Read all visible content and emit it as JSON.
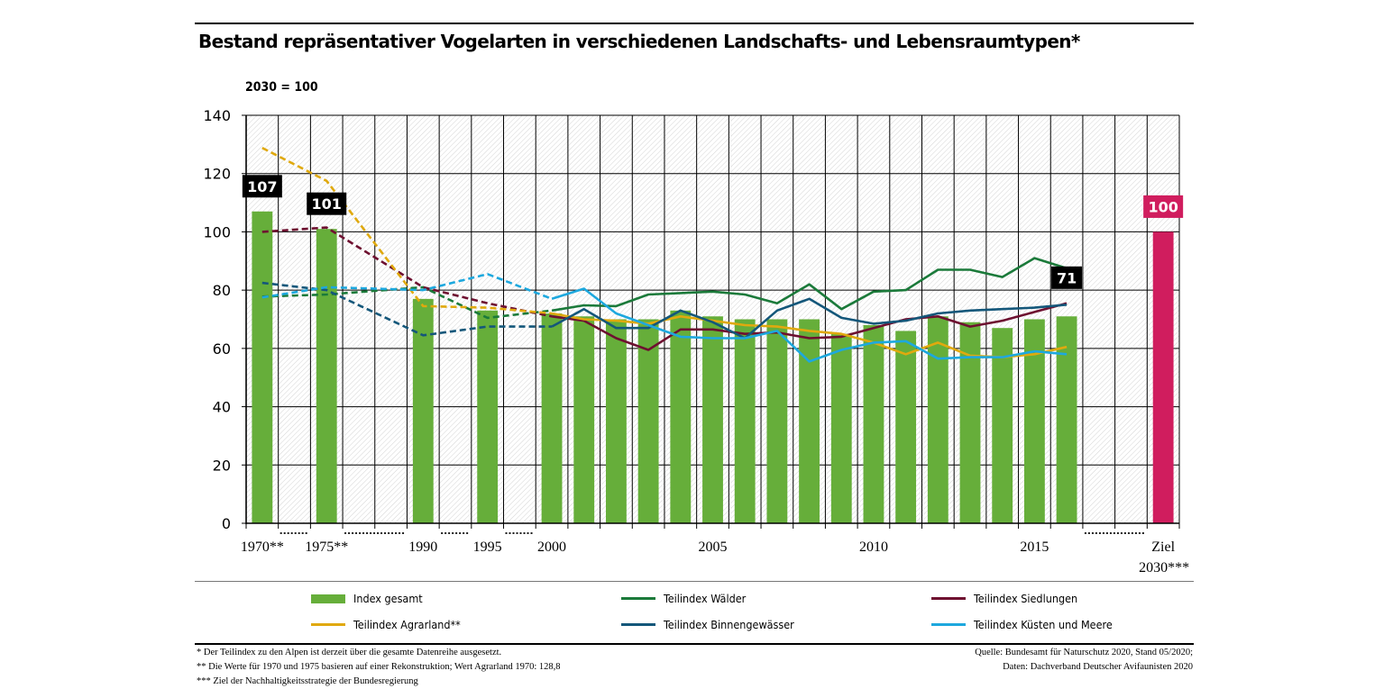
{
  "title": "Bestand repräsentativer Vogelarten in verschiedenen Landschafts- und Lebensraumtypen*",
  "unit_label": "2030 = 100",
  "chart_data": {
    "type": "bar",
    "ylim": [
      0,
      140
    ],
    "yticks": [
      0,
      20,
      40,
      60,
      80,
      100,
      120,
      140
    ],
    "xticks": [
      {
        "year": 1970,
        "label": "1970**"
      },
      {
        "year": 1975,
        "label": "1975**"
      },
      {
        "year": 1990,
        "label": "1990"
      },
      {
        "year": 1995,
        "label": "1995"
      },
      {
        "year": 2000,
        "label": "2000"
      },
      {
        "year": 2005,
        "label": "2005"
      },
      {
        "year": 2010,
        "label": "2010"
      },
      {
        "year": 2015,
        "label": "2015"
      },
      {
        "year": "Ziel 2030",
        "label": "Ziel",
        "label2": "2030***"
      }
    ],
    "bars": {
      "name": "Index gesamt",
      "color": "#66ae3a",
      "years": [
        1970,
        1975,
        1990,
        1995,
        2000,
        2001,
        2002,
        2003,
        2004,
        2005,
        2006,
        2007,
        2008,
        2009,
        2010,
        2011,
        2012,
        2013,
        2014,
        2015,
        2016
      ],
      "values": [
        107,
        101,
        77,
        73,
        72,
        71,
        70,
        70,
        73,
        71,
        70,
        70,
        70,
        65,
        68,
        66,
        71,
        69,
        67,
        70,
        71
      ]
    },
    "target": {
      "label": "Ziel 2030***",
      "value": 100,
      "color": "#d01d5e"
    },
    "value_labels": [
      {
        "year": 1970,
        "text": "107"
      },
      {
        "year": 1975,
        "text": "101"
      },
      {
        "year": 2016,
        "text": "71"
      },
      {
        "year": "Ziel 2030",
        "text": "100"
      }
    ],
    "series": [
      {
        "name": "Teilindex Wälder",
        "color": "#1b7a3a",
        "reconstructed": [
          [
            1970,
            77.8
          ],
          [
            1975,
            78.5
          ],
          [
            1990,
            81
          ],
          [
            1995,
            70.5
          ],
          [
            2000,
            73
          ]
        ],
        "measured": [
          [
            2000,
            73
          ],
          [
            2001,
            74.8
          ],
          [
            2002,
            74.5
          ],
          [
            2003,
            78.5
          ],
          [
            2004,
            79
          ],
          [
            2005,
            79.5
          ],
          [
            2006,
            78.5
          ],
          [
            2007,
            75.5
          ],
          [
            2008,
            82
          ],
          [
            2009,
            73.5
          ],
          [
            2010,
            79.5
          ],
          [
            2011,
            80
          ],
          [
            2012,
            87
          ],
          [
            2013,
            87
          ],
          [
            2014,
            84.5
          ],
          [
            2015,
            91
          ],
          [
            2016,
            87.5
          ]
        ]
      },
      {
        "name": "Teilindex Siedlungen",
        "color": "#6e1030",
        "reconstructed": [
          [
            1970,
            100
          ],
          [
            1975,
            101.5
          ],
          [
            1990,
            81
          ],
          [
            1995,
            75.5
          ],
          [
            2000,
            71
          ]
        ],
        "measured": [
          [
            2000,
            71
          ],
          [
            2001,
            69.5
          ],
          [
            2002,
            63.5
          ],
          [
            2003,
            59.5
          ],
          [
            2004,
            66.5
          ],
          [
            2005,
            66.5
          ],
          [
            2006,
            65
          ],
          [
            2007,
            65.5
          ],
          [
            2008,
            63.5
          ],
          [
            2009,
            64
          ],
          [
            2010,
            67
          ],
          [
            2011,
            70
          ],
          [
            2012,
            71
          ],
          [
            2013,
            67.5
          ],
          [
            2014,
            69.5
          ],
          [
            2015,
            72.5
          ],
          [
            2016,
            75.5
          ]
        ]
      },
      {
        "name": "Teilindex Agrarland**",
        "color": "#e0a90e",
        "reconstructed": [
          [
            1970,
            128.8
          ],
          [
            1975,
            117.5
          ],
          [
            1990,
            74.5
          ],
          [
            1995,
            74
          ],
          [
            2000,
            72
          ]
        ],
        "measured": [
          [
            2000,
            72
          ],
          [
            2001,
            70
          ],
          [
            2002,
            69.5
          ],
          [
            2003,
            68.5
          ],
          [
            2004,
            71
          ],
          [
            2005,
            69.5
          ],
          [
            2006,
            68
          ],
          [
            2007,
            67.5
          ],
          [
            2008,
            66
          ],
          [
            2009,
            65
          ],
          [
            2010,
            62
          ],
          [
            2011,
            58
          ],
          [
            2012,
            62
          ],
          [
            2013,
            57.5
          ],
          [
            2014,
            57
          ],
          [
            2015,
            58
          ],
          [
            2016,
            60.5
          ]
        ]
      },
      {
        "name": "Teilindex Binnengewässer",
        "color": "#14577a",
        "reconstructed": [
          [
            1970,
            82.5
          ],
          [
            1975,
            80
          ],
          [
            1990,
            64.5
          ],
          [
            1995,
            67.5
          ],
          [
            2000,
            67.5
          ]
        ],
        "measured": [
          [
            2000,
            67.5
          ],
          [
            2001,
            73.5
          ],
          [
            2002,
            67
          ],
          [
            2003,
            67
          ],
          [
            2004,
            73
          ],
          [
            2005,
            69
          ],
          [
            2006,
            63.5
          ],
          [
            2007,
            73
          ],
          [
            2008,
            77
          ],
          [
            2009,
            70.5
          ],
          [
            2010,
            68.5
          ],
          [
            2011,
            69.5
          ],
          [
            2012,
            72
          ],
          [
            2013,
            73
          ],
          [
            2014,
            73.5
          ],
          [
            2015,
            74
          ],
          [
            2016,
            75
          ]
        ]
      },
      {
        "name": "Teilindex Küsten und Meere",
        "color": "#1da8de",
        "reconstructed": [
          [
            1970,
            77.5
          ],
          [
            1975,
            81
          ],
          [
            1990,
            80
          ],
          [
            1995,
            85.5
          ],
          [
            2000,
            77
          ]
        ],
        "measured": [
          [
            2000,
            77
          ],
          [
            2001,
            80.5
          ],
          [
            2002,
            72
          ],
          [
            2003,
            68
          ],
          [
            2004,
            64
          ],
          [
            2005,
            63.5
          ],
          [
            2006,
            63.5
          ],
          [
            2007,
            66
          ],
          [
            2008,
            55.5
          ],
          [
            2009,
            59.5
          ],
          [
            2010,
            62
          ],
          [
            2011,
            62.5
          ],
          [
            2012,
            56.5
          ],
          [
            2013,
            57
          ],
          [
            2014,
            57
          ],
          [
            2015,
            59
          ],
          [
            2016,
            58
          ]
        ]
      }
    ]
  },
  "legend": [
    {
      "label": "Index gesamt",
      "type": "bar",
      "color": "#66ae3a"
    },
    {
      "label": "Teilindex Wälder",
      "type": "line",
      "color": "#1b7a3a"
    },
    {
      "label": "Teilindex Siedlungen",
      "type": "line",
      "color": "#6e1030"
    },
    {
      "label": "Teilindex Agrarland**",
      "type": "line",
      "color": "#e0a90e"
    },
    {
      "label": "Teilindex Binnengewässer",
      "type": "line",
      "color": "#14577a"
    },
    {
      "label": "Teilindex Küsten und Meere",
      "type": "line",
      "color": "#1da8de"
    }
  ],
  "footnotes": [
    "* Der Teilindex zu den Alpen ist derzeit über die gesamte Datenreihe ausgesetzt.",
    "** Die Werte für 1970 und 1975 basieren auf einer Rekonstruktion; Wert Agrarland 1970: 128,8",
    "*** Ziel der Nachhaltigkeitsstrategie der Bundesregierung"
  ],
  "source": [
    "Quelle: Bundesamt für Naturschutz 2020, Stand 05/2020;",
    "Daten: Dachverband Deutscher Avifaunisten 2020"
  ]
}
